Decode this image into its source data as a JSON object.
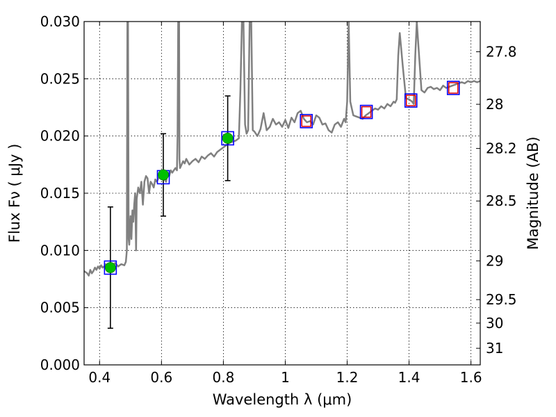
{
  "chart_data": {
    "type": "line",
    "title": "",
    "xlabel": "Wavelength  λ (μm)",
    "ylabel": "Flux  Fν  ( μJy )",
    "ylabel_right": "Magnitude (AB)",
    "xlim": [
      0.35,
      1.63
    ],
    "ylim": [
      0,
      0.03
    ],
    "grid": true,
    "legend": "none",
    "xticks": [
      0.4,
      0.6,
      0.8,
      1.0,
      1.2,
      1.4,
      1.6
    ],
    "xtick_labels": [
      "0.4",
      "0.6",
      "0.8",
      "1",
      "1.2",
      "1.4",
      "1.6"
    ],
    "yticks": [
      0,
      0.005,
      0.01,
      0.015,
      0.02,
      0.025,
      0.03
    ],
    "ytick_labels": [
      "0.000",
      "0.005",
      "0.010",
      "0.015",
      "0.020",
      "0.025",
      "0.030"
    ],
    "right_axis_ticks": [
      {
        "label": "27.8",
        "flux": 0.02736
      },
      {
        "label": "28",
        "flux": 0.02277
      },
      {
        "label": "28.2",
        "flux": 0.01891
      },
      {
        "label": "28.5",
        "flux": 0.01432
      },
      {
        "label": "29",
        "flux": 0.00909
      },
      {
        "label": "29.5",
        "flux": 0.0057
      },
      {
        "label": "30",
        "flux": 0.00365
      },
      {
        "label": "31",
        "flux": 0.00145
      }
    ],
    "series": [
      {
        "kind": "template-spectrum",
        "color": "#808080",
        "x": [
          0.35,
          0.36,
          0.365,
          0.37,
          0.375,
          0.38,
          0.385,
          0.39,
          0.395,
          0.4,
          0.405,
          0.41,
          0.415,
          0.42,
          0.425,
          0.43,
          0.435,
          0.44,
          0.445,
          0.45,
          0.46,
          0.47,
          0.48,
          0.485,
          0.488,
          0.49,
          0.492,
          0.494,
          0.496,
          0.498,
          0.5,
          0.503,
          0.506,
          0.509,
          0.512,
          0.515,
          0.518,
          0.52,
          0.525,
          0.53,
          0.535,
          0.54,
          0.545,
          0.55,
          0.555,
          0.56,
          0.565,
          0.57,
          0.575,
          0.58,
          0.585,
          0.59,
          0.595,
          0.6,
          0.605,
          0.61,
          0.615,
          0.62,
          0.625,
          0.63,
          0.635,
          0.64,
          0.645,
          0.65,
          0.652,
          0.654,
          0.655,
          0.656,
          0.657,
          0.658,
          0.66,
          0.665,
          0.67,
          0.675,
          0.68,
          0.69,
          0.7,
          0.71,
          0.72,
          0.73,
          0.74,
          0.75,
          0.76,
          0.77,
          0.78,
          0.79,
          0.8,
          0.81,
          0.82,
          0.83,
          0.84,
          0.85,
          0.855,
          0.86,
          0.865,
          0.87,
          0.875,
          0.88,
          0.885,
          0.89,
          0.895,
          0.9,
          0.91,
          0.92,
          0.93,
          0.94,
          0.95,
          0.96,
          0.97,
          0.98,
          0.99,
          1.0,
          1.01,
          1.02,
          1.03,
          1.04,
          1.05,
          1.06,
          1.07,
          1.08,
          1.09,
          1.1,
          1.11,
          1.12,
          1.13,
          1.14,
          1.15,
          1.16,
          1.17,
          1.18,
          1.19,
          1.195,
          1.2,
          1.205,
          1.21,
          1.22,
          1.23,
          1.24,
          1.25,
          1.26,
          1.27,
          1.28,
          1.29,
          1.3,
          1.31,
          1.32,
          1.33,
          1.34,
          1.35,
          1.355,
          1.36,
          1.365,
          1.37,
          1.38,
          1.39,
          1.4,
          1.41,
          1.415,
          1.42,
          1.425,
          1.43,
          1.44,
          1.45,
          1.46,
          1.47,
          1.48,
          1.49,
          1.5,
          1.51,
          1.52,
          1.53,
          1.54,
          1.55,
          1.56,
          1.57,
          1.58,
          1.59,
          1.6,
          1.61,
          1.62,
          1.63
        ],
        "y": [
          0.0082,
          0.008,
          0.0078,
          0.0083,
          0.008,
          0.0082,
          0.0085,
          0.0083,
          0.0086,
          0.0084,
          0.0087,
          0.0085,
          0.0086,
          0.0088,
          0.0085,
          0.0087,
          0.0086,
          0.0088,
          0.0087,
          0.0089,
          0.0086,
          0.0088,
          0.0087,
          0.009,
          0.01,
          0.03,
          0.03,
          0.011,
          0.0105,
          0.012,
          0.013,
          0.011,
          0.0135,
          0.0125,
          0.014,
          0.015,
          0.01,
          0.0145,
          0.0155,
          0.015,
          0.016,
          0.014,
          0.016,
          0.0165,
          0.0163,
          0.015,
          0.016,
          0.0158,
          0.0155,
          0.0162,
          0.016,
          0.0163,
          0.0165,
          0.0164,
          0.0166,
          0.0162,
          0.016,
          0.0168,
          0.0165,
          0.017,
          0.0168,
          0.017,
          0.0172,
          0.017,
          0.02,
          0.03,
          0.03,
          0.03,
          0.03,
          0.018,
          0.0172,
          0.0175,
          0.0178,
          0.0176,
          0.018,
          0.0175,
          0.0178,
          0.018,
          0.0177,
          0.0182,
          0.018,
          0.0183,
          0.0185,
          0.0182,
          0.0186,
          0.0188,
          0.019,
          0.0192,
          0.0194,
          0.0195,
          0.0196,
          0.0198,
          0.024,
          0.03,
          0.03,
          0.021,
          0.0202,
          0.0205,
          0.03,
          0.03,
          0.0205,
          0.0204,
          0.02,
          0.0206,
          0.022,
          0.0205,
          0.0208,
          0.0215,
          0.021,
          0.0212,
          0.0208,
          0.0214,
          0.0207,
          0.0216,
          0.0212,
          0.022,
          0.0222,
          0.0215,
          0.0212,
          0.0213,
          0.021,
          0.0218,
          0.0216,
          0.021,
          0.0211,
          0.0205,
          0.0203,
          0.021,
          0.0212,
          0.0208,
          0.0215,
          0.0212,
          0.023,
          0.03,
          0.023,
          0.0218,
          0.0217,
          0.0216,
          0.0215,
          0.0218,
          0.022,
          0.0222,
          0.0224,
          0.0223,
          0.0226,
          0.0224,
          0.0228,
          0.0226,
          0.023,
          0.0229,
          0.0232,
          0.027,
          0.029,
          0.026,
          0.0233,
          0.0232,
          0.023,
          0.0228,
          0.027,
          0.03,
          0.028,
          0.024,
          0.0238,
          0.0242,
          0.0243,
          0.0241,
          0.0242,
          0.024,
          0.0244,
          0.0242,
          0.0243,
          0.0244,
          0.0245,
          0.0246,
          0.0247,
          0.0246,
          0.0248,
          0.0247,
          0.0248,
          0.0247,
          0.0248
        ]
      },
      {
        "kind": "observed-photometry",
        "marker": "circle",
        "color": "#00c000",
        "x": [
          0.435,
          0.606,
          0.814
        ],
        "y": [
          0.0085,
          0.0166,
          0.0198
        ],
        "yerr": [
          0.0053,
          0.0036,
          0.0037
        ]
      },
      {
        "kind": "model-photometry",
        "marker": "open-square",
        "color": "#0000ff",
        "x": [
          0.435,
          0.606,
          0.814,
          1.068,
          1.262,
          1.406,
          1.543
        ],
        "y": [
          0.0085,
          0.0164,
          0.0198,
          0.0213,
          0.0221,
          0.0231,
          0.0242
        ]
      },
      {
        "kind": "upper-bands",
        "marker": "open-square",
        "color": "#e00000",
        "x": [
          1.068,
          1.262,
          1.406,
          1.543
        ],
        "y": [
          0.0213,
          0.0221,
          0.0231,
          0.0242
        ]
      }
    ]
  }
}
